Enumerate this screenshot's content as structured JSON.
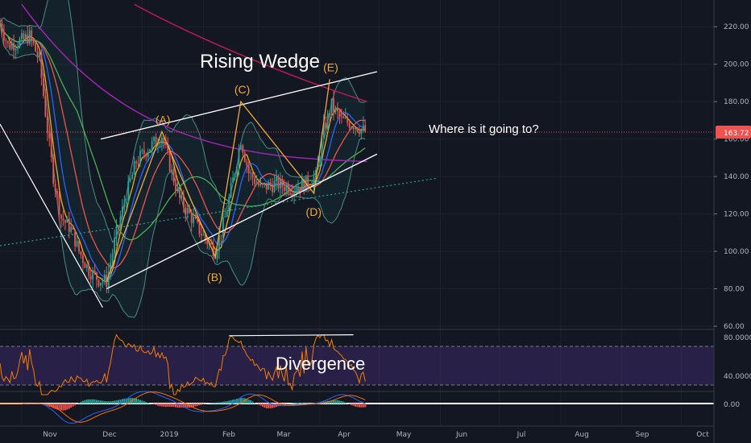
{
  "chart_data": {
    "type": "candlestick",
    "last_price": "163.72",
    "x_axis_labels": [
      "Nov",
      "Dec",
      "2019",
      "Feb",
      "Mar",
      "Apr",
      "May",
      "Jun",
      "Jul",
      "Aug",
      "Sep",
      "Oct"
    ],
    "price_axis": {
      "ticks": [
        "220.00",
        "200.00",
        "180.00",
        "160.00",
        "140.00",
        "120.00",
        "100.00",
        "80.00",
        "60.00"
      ],
      "range": [
        60,
        230
      ]
    },
    "rsi_axis": {
      "ticks": [
        "80.0000",
        "40.0000"
      ],
      "range": [
        25,
        85
      ],
      "band": [
        30,
        70
      ]
    },
    "macd_axis": {
      "ticks": [
        "0.00"
      ]
    },
    "annotations": {
      "title": "Rising Wedge",
      "question": "Where is it going to?",
      "divergence": "Divergence",
      "waves": [
        "(A)",
        "(B)",
        "(C)",
        "(D)",
        "(E)"
      ]
    },
    "wave_points": [
      {
        "label": "(A)",
        "date": "2019-01-11",
        "price": 164
      },
      {
        "label": "(B)",
        "date": "2019-02-07",
        "price": 97
      },
      {
        "label": "(C)",
        "date": "2019-02-20",
        "price": 180
      },
      {
        "label": "(D)",
        "date": "2019-03-29",
        "price": 131
      },
      {
        "label": "(E)",
        "date": "2019-04-06",
        "price": 192
      }
    ],
    "wedge": {
      "upper": [
        {
          "date": "2018-12-11",
          "price": 160
        },
        {
          "date": "2019-04-30",
          "price": 196
        }
      ],
      "lower": [
        {
          "date": "2018-12-14",
          "price": 80
        },
        {
          "date": "2019-04-30",
          "price": 152
        }
      ]
    },
    "series": [
      {
        "color": "#26a69a",
        "role": "up-candle"
      },
      {
        "color": "#ef5350",
        "role": "down-candle"
      },
      {
        "color": "#9c27b0",
        "role": "moving-average"
      },
      {
        "color": "#f5a623",
        "role": "moving-average"
      },
      {
        "color": "#2962ff",
        "role": "moving-average"
      }
    ]
  }
}
